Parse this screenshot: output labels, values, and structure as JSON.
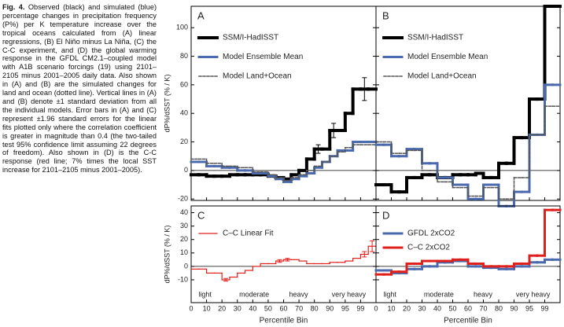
{
  "caption": {
    "label": "Fig. 4.",
    "text": "Observed (black) and simulated (blue) percentage changes in precipitation frequency (P%) per K temperature increase over the tropical oceans calculated from (A) linear regressions, (B) El Niño minus La Niña, (C) the C-C experiment, and (D) the global warming response in the GFDL CM2.1–coupled model with A1B scenario forcings (19) using 2101–2105 minus 2001–2005 daily data. Also shown in (A) and (B) are the simulated changes for land and ocean (dotted line). Vertical lines in (A) and (B) denote ±1 standard deviation from all the individual models. Error bars in (A) and (C) represent ±1.96 standard errors for the linear fits plotted only where the correlation coefficient is greater in magnitude than 0.4 (the two-tailed test 95% confidence limit assuming 22 degrees of freedom). Also shown in (D) is the C-C response (red line; 7% times the local SST increase for 2101–2105 minus 2001–2005)."
  },
  "chart_data": [
    {
      "type": "step",
      "panel": "A",
      "ylabel": "dP%/dSST (% / K)",
      "ylim": [
        -21,
        115
      ],
      "yticks": [
        -20,
        0,
        20,
        40,
        60,
        80,
        100
      ],
      "show_ytick_labels": true,
      "series": [
        {
          "name": "SSM/I-HadISST",
          "color": "#000000",
          "style": "solid",
          "width": 4,
          "values": [
            -3,
            -3,
            -4,
            -4,
            -4,
            -3,
            -3,
            -3,
            -3,
            -3,
            -4,
            -5,
            -6,
            -3,
            0,
            8,
            15,
            15,
            28,
            28,
            40,
            57,
            57,
            57
          ],
          "errors": [
            null,
            null,
            null,
            null,
            null,
            null,
            null,
            null,
            null,
            null,
            null,
            null,
            null,
            null,
            null,
            null,
            3,
            null,
            5,
            null,
            null,
            null,
            8,
            null
          ]
        },
        {
          "name": "Model Ensemble Mean",
          "color": "#4a6aad",
          "style": "solid",
          "width": 3,
          "values": [
            6,
            6,
            3,
            3,
            2,
            2,
            0,
            0,
            -2,
            -2,
            -4,
            -6,
            -8,
            -6,
            -4,
            -2,
            2,
            6,
            10,
            14,
            14,
            20,
            20,
            20
          ]
        },
        {
          "name": "Model Land+Ocean",
          "color": "#555555",
          "style": "dotted",
          "width": 1.5,
          "values": [
            8,
            8,
            5,
            5,
            3,
            3,
            2,
            2,
            -1,
            -1,
            -3,
            -5,
            -7,
            -5,
            -3,
            0,
            3,
            6,
            10,
            13,
            16,
            18,
            18,
            18
          ]
        }
      ]
    },
    {
      "type": "step",
      "panel": "B",
      "ylim": [
        -21,
        115
      ],
      "yticks": [
        -20,
        0,
        20,
        40,
        60,
        80,
        100
      ],
      "show_ytick_labels": false,
      "series": [
        {
          "name": "SSM/I-HadISST",
          "color": "#000000",
          "style": "solid",
          "width": 4,
          "values": [
            -10,
            -10,
            -15,
            -15,
            -5,
            -5,
            -3,
            -3,
            -5,
            -5,
            -3,
            -3,
            -3,
            -2,
            -5,
            -5,
            5,
            5,
            23,
            23,
            50,
            50,
            115,
            115
          ]
        },
        {
          "name": "Model Ensemble Mean",
          "color": "#4a6aad",
          "style": "solid",
          "width": 3,
          "values": [
            18,
            18,
            10,
            10,
            15,
            15,
            5,
            5,
            -5,
            -5,
            -10,
            -10,
            -20,
            -20,
            -10,
            -10,
            -25,
            -25,
            -15,
            -15,
            25,
            25,
            60,
            60
          ]
        },
        {
          "name": "Model Land+Ocean",
          "color": "#555555",
          "style": "dotted",
          "width": 1.5,
          "values": [
            20,
            20,
            12,
            12,
            14,
            14,
            0,
            0,
            -8,
            -8,
            -12,
            -12,
            -18,
            -18,
            -12,
            -12,
            -20,
            -20,
            -5,
            -5,
            25,
            25,
            45,
            45
          ]
        }
      ]
    },
    {
      "type": "step",
      "panel": "C",
      "ylabel": "dP%/dSST (% / K)",
      "xlabel": "Percentile Bin",
      "ylim": [
        -27,
        45
      ],
      "yticks": [
        -10,
        0,
        10,
        20,
        30,
        40
      ],
      "show_ytick_labels": true,
      "categories": [
        "0",
        null,
        "10",
        null,
        "20",
        null,
        "30",
        null,
        "40",
        null,
        "50",
        null,
        "60",
        null,
        "70",
        null,
        "80",
        null,
        "90",
        null,
        "95",
        null,
        "99",
        null
      ],
      "annotations": [
        "light",
        "moderate",
        "heavy",
        "very heavy"
      ],
      "series": [
        {
          "name": "C–C Linear Fit",
          "color": "#e0201b",
          "style": "solid",
          "width": 1.2,
          "values": [
            -2,
            -2,
            -5,
            -5,
            -10,
            -8,
            -5,
            -3,
            0,
            2,
            2,
            4,
            5,
            5,
            4,
            2,
            2,
            2,
            3,
            3,
            4,
            6,
            9,
            15
          ],
          "errors": [
            null,
            null,
            null,
            null,
            1,
            null,
            null,
            null,
            null,
            null,
            null,
            1,
            1,
            null,
            null,
            null,
            null,
            null,
            null,
            null,
            null,
            null,
            2,
            4
          ]
        }
      ]
    },
    {
      "type": "step",
      "panel": "D",
      "xlabel": "Percentile Bin",
      "ylim": [
        -27,
        45
      ],
      "yticks": [
        -10,
        0,
        10,
        20,
        30,
        40
      ],
      "show_ytick_labels": false,
      "categories": [
        "0",
        null,
        "10",
        null,
        "20",
        null,
        "30",
        null,
        "40",
        null,
        "50",
        null,
        "60",
        null,
        "70",
        null,
        "80",
        null,
        "90",
        null,
        "95",
        null,
        "99",
        null
      ],
      "annotations": [
        "light",
        "moderate",
        "heavy",
        "very heavy"
      ],
      "series": [
        {
          "name": "GFDL 2xCO2",
          "color": "#4a6aad",
          "style": "solid",
          "width": 3,
          "values": [
            -3,
            -3,
            -5,
            -5,
            -2,
            -2,
            0,
            0,
            3,
            3,
            4,
            4,
            0,
            0,
            -1,
            -1,
            -2,
            -2,
            0,
            0,
            3,
            3,
            5,
            5
          ]
        },
        {
          "name": "C–C 2xCO2",
          "color": "#e0201b",
          "style": "solid",
          "width": 3,
          "values": [
            -6,
            -6,
            -4,
            -4,
            2,
            2,
            4,
            4,
            4,
            4,
            5,
            5,
            2,
            2,
            0,
            0,
            0,
            0,
            2,
            2,
            8,
            8,
            42,
            42
          ]
        }
      ]
    }
  ]
}
